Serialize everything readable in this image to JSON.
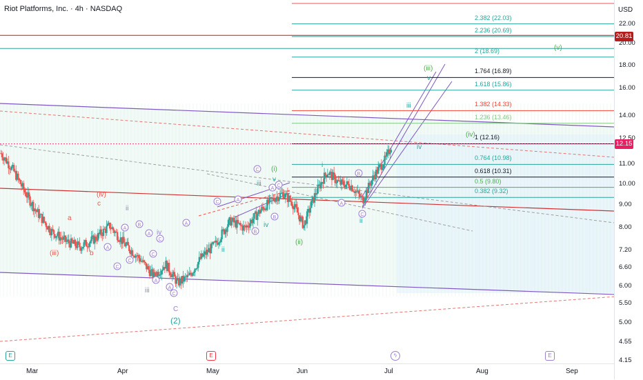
{
  "header": {
    "title": "Riot Platforms, Inc. · 4h · NASDAQ"
  },
  "price_axis": {
    "currency": "USD",
    "ticks": [
      "22.00",
      "20.00",
      "18.00",
      "16.00",
      "14.00",
      "12.50",
      "11.00",
      "10.00",
      "9.00",
      "8.00",
      "7.20",
      "6.60",
      "6.00",
      "5.50",
      "5.00",
      "4.55",
      "4.15"
    ],
    "tags": [
      {
        "label": "20.81",
        "color": "#b71c1c"
      },
      {
        "label": "12.15",
        "color": "#e91e63"
      }
    ]
  },
  "time_axis": {
    "ticks": [
      "Mar",
      "Apr",
      "May",
      "Jun",
      "Jul",
      "Aug",
      "Sep"
    ]
  },
  "fib_levels": [
    {
      "label": "2.382 (22.03)",
      "value": 22.03,
      "color": "#26a69a"
    },
    {
      "label": "2.236 (20.69)",
      "value": 20.69,
      "color": "#26a69a"
    },
    {
      "label": "2 (18.69)",
      "value": 18.69,
      "color": "#26a69a"
    },
    {
      "label": "1.764 (16.89)",
      "value": 16.89,
      "color": "#131722"
    },
    {
      "label": "1.618 (15.86)",
      "value": 15.86,
      "color": "#26a69a"
    },
    {
      "label": "1.382 (14.33)",
      "value": 14.33,
      "color": "#f44336"
    },
    {
      "label": "1.236 (13.46)",
      "value": 13.46,
      "color": "#81c784"
    },
    {
      "label": "1 (12.16)",
      "value": 12.16,
      "color": "#131722"
    },
    {
      "label": "0.764 (10.98)",
      "value": 10.98,
      "color": "#26a69a"
    },
    {
      "label": "0.618 (10.31)",
      "value": 10.31,
      "color": "#131722"
    },
    {
      "label": "0.5 (9.80)",
      "value": 9.8,
      "color": "#4caf50"
    },
    {
      "label": "0.382 (9.32)",
      "value": 9.32,
      "color": "#26a69a"
    }
  ],
  "wave_labels": [
    {
      "text": "(v)",
      "color": "#4caf50"
    },
    {
      "text": "(iii)",
      "color": "#4caf50"
    },
    {
      "text": "v",
      "color": "#26a69a"
    },
    {
      "text": "iii",
      "color": "#26a69a"
    },
    {
      "text": "(iv)",
      "color": "#4caf50"
    },
    {
      "text": "iv",
      "color": "#26a69a"
    },
    {
      "text": "i",
      "color": "#26a69a"
    },
    {
      "text": "(i)",
      "color": "#4caf50"
    },
    {
      "text": "v",
      "color": "#26a69a"
    },
    {
      "text": "iii",
      "color": "#26a69a"
    },
    {
      "text": "iv",
      "color": "#26a69a"
    },
    {
      "text": "ii",
      "color": "#26a69a"
    },
    {
      "text": "(ii)",
      "color": "#4caf50"
    },
    {
      "text": "ii",
      "color": "#26a69a"
    },
    {
      "text": "(iv)",
      "color": "#ef5350"
    },
    {
      "text": "c",
      "color": "#ef5350"
    },
    {
      "text": "a",
      "color": "#ef5350"
    },
    {
      "text": "b",
      "color": "#ef5350"
    },
    {
      "text": "(iii)",
      "color": "#ef5350"
    },
    {
      "text": "(2)",
      "color": "#26a69a"
    },
    {
      "text": "ii",
      "color": "#9c7fcf"
    },
    {
      "text": "iii",
      "color": "#9c7fcf"
    },
    {
      "text": "iv",
      "color": "#9c7fcf"
    },
    {
      "text": "C",
      "color": "#9c7fcf"
    }
  ],
  "events": [
    {
      "text": "E",
      "color": "#26a69a"
    },
    {
      "text": "E",
      "color": "#f23645"
    },
    {
      "text": "ϟ",
      "color": "#9c7fcf"
    },
    {
      "text": "E",
      "color": "#9c7fcf"
    }
  ],
  "colors": {
    "up": "#26a69a",
    "down": "#ef5350",
    "channel": "#7e57c2",
    "trend": "#d32f2f"
  },
  "chart_data": {
    "type": "candlestick",
    "title": "Riot Platforms, Inc. · 4h · NASDAQ",
    "x_range": [
      "2024-02-20",
      "2024-09-15"
    ],
    "y_range": [
      4.15,
      23.5
    ],
    "y_scale": "log",
    "last_price": 12.15,
    "reference_price": 20.81,
    "close_path": [
      [
        "2024-02-20",
        11.6
      ],
      [
        "2024-02-24",
        10.7
      ],
      [
        "2024-02-28",
        9.6
      ],
      [
        "2024-03-03",
        8.7
      ],
      [
        "2024-03-08",
        7.9
      ],
      [
        "2024-03-13",
        7.5
      ],
      [
        "2024-03-18",
        7.3
      ],
      [
        "2024-03-23",
        7.6
      ],
      [
        "2024-03-28",
        8.1
      ],
      [
        "2024-04-02",
        7.4
      ],
      [
        "2024-04-07",
        6.9
      ],
      [
        "2024-04-12",
        6.3
      ],
      [
        "2024-04-16",
        6.7
      ],
      [
        "2024-04-20",
        6.1
      ],
      [
        "2024-04-24",
        6.3
      ],
      [
        "2024-04-28",
        6.9
      ],
      [
        "2024-05-03",
        7.4
      ],
      [
        "2024-05-08",
        8.3
      ],
      [
        "2024-05-13",
        8.0
      ],
      [
        "2024-05-18",
        8.7
      ],
      [
        "2024-05-23",
        9.3
      ],
      [
        "2024-05-26",
        9.5
      ],
      [
        "2024-05-29",
        9.1
      ],
      [
        "2024-06-02",
        8.1
      ],
      [
        "2024-06-06",
        9.5
      ],
      [
        "2024-06-10",
        10.6
      ],
      [
        "2024-06-14",
        10.0
      ],
      [
        "2024-06-18",
        9.9
      ],
      [
        "2024-06-22",
        9.2
      ],
      [
        "2024-06-26",
        10.4
      ],
      [
        "2024-06-30",
        11.3
      ],
      [
        "2024-07-02",
        12.15
      ]
    ]
  }
}
